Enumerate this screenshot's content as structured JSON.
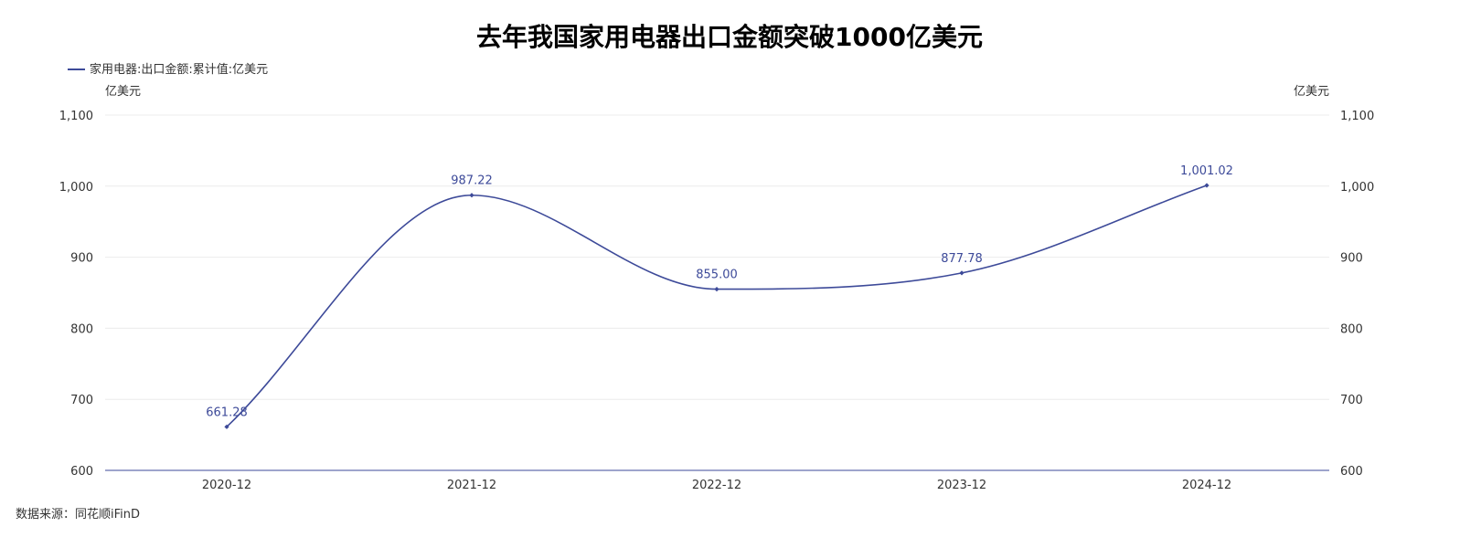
{
  "title": "去年我国家用电器出口金额突破1000亿美元",
  "source": "数据来源：同花顺iFinD",
  "colors": {
    "series": "#3d4a99",
    "grid": "#ececec",
    "axis": "#3d4a99"
  },
  "chart_data": {
    "type": "line",
    "smooth": true,
    "title": "去年我国家用电器出口金额突破1000亿美元",
    "categories": [
      "2020-12",
      "2021-12",
      "2022-12",
      "2023-12",
      "2024-12"
    ],
    "series": [
      {
        "name": "家用电器:出口金额:累计值:亿美元",
        "values": [
          661.28,
          987.22,
          855.0,
          877.78,
          1001.02
        ],
        "labels": [
          "661.28",
          "987.22",
          "855.00",
          "877.78",
          "1,001.02"
        ]
      }
    ],
    "y_unit_left": "亿美元",
    "y_unit_right": "亿美元",
    "ylim": [
      600,
      1100
    ],
    "yticks": [
      600,
      700,
      800,
      900,
      1000,
      1100
    ],
    "ytick_labels": [
      "600",
      "700",
      "800",
      "900",
      "1,000",
      "1,100"
    ],
    "grid": true,
    "legend_position": "top-left"
  }
}
